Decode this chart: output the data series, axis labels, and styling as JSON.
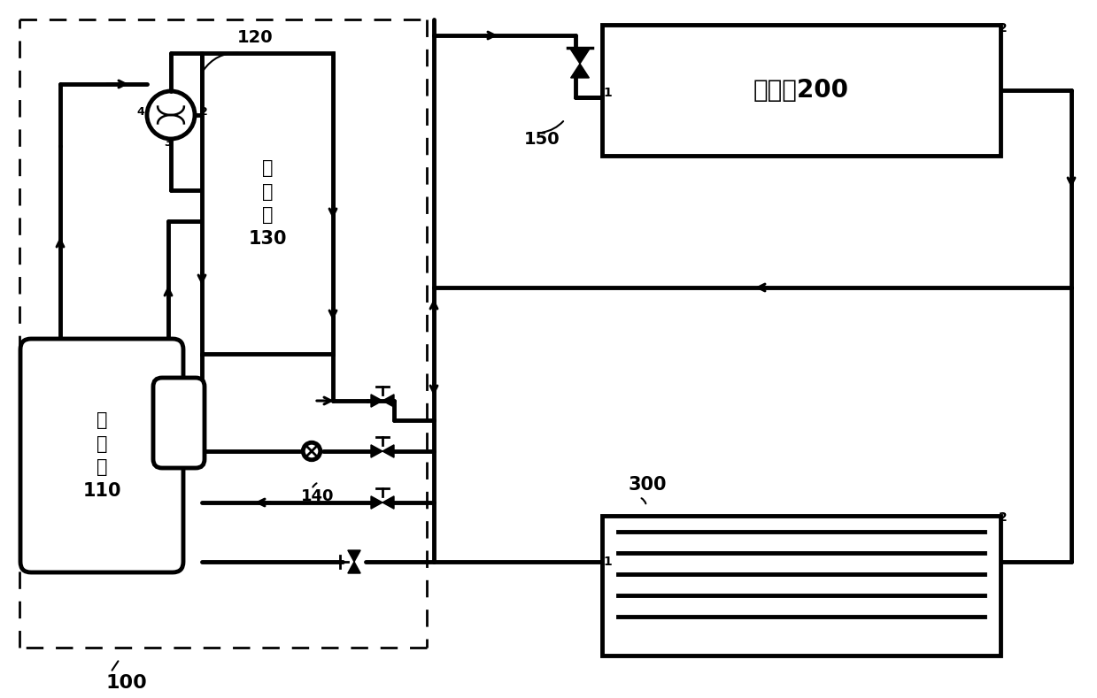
{
  "bg_color": "#ffffff",
  "labels": {
    "compressor": "压\n缩\n机\n110",
    "condenser": "冷\n凝\n器\n130",
    "indoor_unit": "室内机200",
    "c120": "120",
    "c140": "140",
    "c150": "150",
    "c300": "300",
    "c100": "100"
  }
}
